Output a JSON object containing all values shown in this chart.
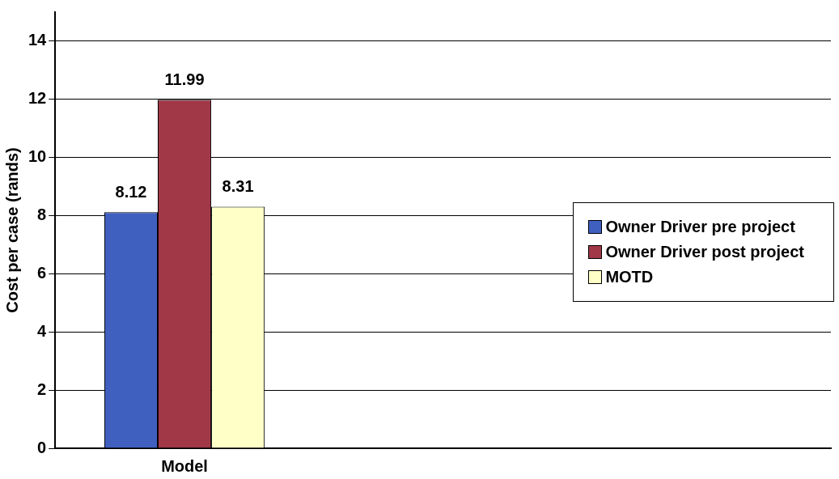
{
  "chart_data": {
    "type": "bar",
    "ylabel": "Cost per case (rands)",
    "categories": [
      "Model",
      null,
      null
    ],
    "series": [
      {
        "name": "Owner Driver pre project",
        "color": "#4060c0",
        "values": [
          8.12,
          null,
          null
        ]
      },
      {
        "name": "Owner Driver post project",
        "color": "#a03848",
        "values": [
          11.99,
          null,
          null
        ]
      },
      {
        "name": "MOTD",
        "color": "#ffffc8",
        "values": [
          8.31,
          null,
          null
        ]
      }
    ],
    "ylim": [
      0,
      15
    ],
    "yticks": [
      0,
      2,
      4,
      6,
      8,
      10,
      12,
      14
    ],
    "grid": "y",
    "legend": "right",
    "data_labels": true
  }
}
